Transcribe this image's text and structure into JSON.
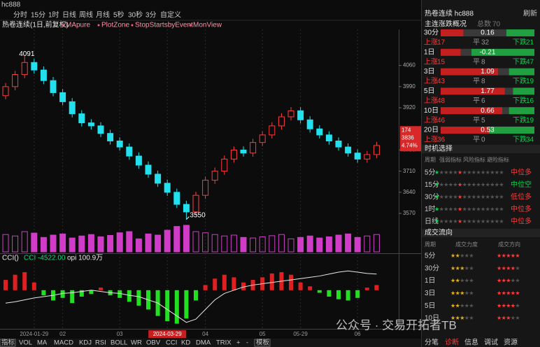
{
  "window_title": "hc888",
  "periods": [
    "分时",
    "15分",
    "1时",
    "日线",
    "周线",
    "月线",
    "5秒",
    "30秒",
    "3分",
    "自定义"
  ],
  "chart": {
    "title": "热卷连续(1日,前复权)",
    "indicators": [
      "MApure",
      "PlotZone",
      "StopStartsbyEvent",
      "MonView"
    ],
    "ylim": [
      3540,
      4175
    ],
    "yticks": [
      3570,
      3640,
      3710,
      3780,
      3920,
      3990,
      4060
    ],
    "open": [
      3960,
      3990,
      4030,
      4070,
      4045,
      4010,
      3970,
      3940,
      3900,
      3870,
      3860,
      3835,
      3810,
      3790,
      3760,
      3730,
      3700,
      3670,
      3640,
      3600,
      3575,
      3630,
      3680,
      3710,
      3750,
      3780,
      3770,
      3805,
      3830,
      3860,
      3890,
      3910,
      3880,
      3850,
      3830,
      3810,
      3790,
      3770,
      3750,
      3765
    ],
    "high": [
      4002,
      4042,
      4091,
      4082,
      4057,
      4022,
      3982,
      3952,
      3912,
      3882,
      3872,
      3847,
      3822,
      3802,
      3772,
      3742,
      3712,
      3682,
      3652,
      3612,
      3642,
      3692,
      3722,
      3762,
      3792,
      3792,
      3817,
      3842,
      3872,
      3902,
      3922,
      3922,
      3892,
      3862,
      3842,
      3822,
      3802,
      3782,
      3777,
      3807
    ],
    "low": [
      3948,
      3978,
      4018,
      4033,
      3998,
      3958,
      3928,
      3888,
      3858,
      3848,
      3823,
      3798,
      3778,
      3748,
      3718,
      3688,
      3658,
      3628,
      3588,
      3550,
      3563,
      3618,
      3668,
      3698,
      3738,
      3758,
      3758,
      3793,
      3818,
      3848,
      3878,
      3868,
      3838,
      3818,
      3798,
      3778,
      3758,
      3738,
      3738,
      3753
    ],
    "close": [
      3990,
      4030,
      4070,
      4045,
      4010,
      3970,
      3940,
      3900,
      3870,
      3860,
      3835,
      3810,
      3790,
      3760,
      3730,
      3700,
      3670,
      3640,
      3600,
      3575,
      3630,
      3680,
      3710,
      3750,
      3780,
      3770,
      3805,
      3830,
      3860,
      3890,
      3910,
      3880,
      3850,
      3830,
      3810,
      3790,
      3770,
      3750,
      3765,
      3795
    ],
    "max_label": 4091,
    "min_label": 3550,
    "last": {
      "change": 174,
      "price": 3836,
      "pct": "4.74%"
    },
    "volume": [
      60,
      55,
      70,
      65,
      50,
      58,
      62,
      48,
      55,
      60,
      52,
      57,
      66,
      70,
      45,
      62,
      58,
      75,
      88,
      92,
      70,
      66,
      60,
      55,
      58,
      50,
      48,
      52,
      56,
      60,
      45,
      50,
      55,
      48,
      52,
      58,
      62,
      50,
      55,
      60
    ],
    "cci_label": "CCI()",
    "cci_text": "CCI -4522.00",
    "opi_text": "opi 100.9万",
    "cci_ylim": [
      -300,
      200
    ],
    "cci": [
      80,
      120,
      140,
      60,
      -40,
      -80,
      -60,
      -100,
      -50,
      -30,
      20,
      -40,
      -60,
      -90,
      -120,
      -150,
      -200,
      -240,
      -260,
      -220,
      -80,
      40,
      90,
      120,
      100,
      60,
      80,
      100,
      130,
      140,
      120,
      60,
      30,
      -20,
      -50,
      -70,
      -80,
      -60,
      20,
      40
    ],
    "opi_ylim": [
      0,
      100
    ],
    "opi": [
      40,
      42,
      45,
      48,
      50,
      52,
      55,
      56,
      58,
      60,
      58,
      56,
      55,
      52,
      50,
      45,
      40,
      30,
      20,
      10,
      15,
      30,
      45,
      55,
      60,
      65,
      68,
      70,
      72,
      74,
      76,
      78,
      80,
      82,
      85,
      88,
      90,
      88,
      86,
      85
    ],
    "dates": [
      null,
      null,
      null,
      "2024-01-29",
      null,
      null,
      "02",
      null,
      null,
      null,
      null,
      null,
      "03",
      null,
      null,
      null,
      null,
      "2024-03-29",
      null,
      null,
      null,
      "04",
      null,
      null,
      null,
      null,
      null,
      "05",
      null,
      null,
      null,
      "05-29",
      null,
      null,
      null,
      null,
      null,
      "06",
      null,
      null
    ]
  },
  "tabs": [
    "指标",
    "VOL",
    "MA",
    "MACD",
    "KDJ",
    "RSI",
    "BOLL",
    "WR",
    "OBV",
    "CCI",
    "KD",
    "DMA",
    "TRIX",
    "+",
    "-",
    "模板"
  ],
  "sidebar": {
    "title": "热卷连续 hc888",
    "refresh": "刷新",
    "overview": {
      "title": "主连涨跌概况",
      "total_label": "总数",
      "total": 70,
      "labels": [
        "上涨",
        "平",
        "下跌"
      ],
      "rows": [
        {
          "period": "30分",
          "value": 0.16,
          "up": 17,
          "flat": 32,
          "down": 21
        },
        {
          "period": "1日",
          "value": -0.21,
          "up": 15,
          "flat": 8,
          "down": 47
        },
        {
          "period": "3日",
          "value": 1.09,
          "up": 43,
          "flat": 8,
          "down": 19
        },
        {
          "period": "5日",
          "value": 1.77,
          "up": 48,
          "flat": 6,
          "down": 16
        },
        {
          "period": "10日",
          "value": 0.66,
          "up": 46,
          "flat": 5,
          "down": 19
        },
        {
          "period": "20日",
          "value": 0.53,
          "up": 36,
          "flat": 0,
          "down": 34
        }
      ]
    },
    "timing": {
      "title": "时机选择",
      "headers": [
        "周期",
        "强弱指标",
        "风险指标",
        "避险指标"
      ],
      "rows": [
        {
          "period": "5分",
          "status": "中位多"
        },
        {
          "period": "15分",
          "status": "中位空"
        },
        {
          "period": "30分",
          "status": "低位多"
        },
        {
          "period": "1时",
          "status": "中位多"
        },
        {
          "period": "日线",
          "status": "中位多"
        }
      ]
    },
    "flow": {
      "title": "成交流向",
      "headers": [
        "周期",
        "成交力度",
        "成交方向"
      ],
      "rows": [
        "5分",
        "30分",
        "1日",
        "3日",
        "5日",
        "10日"
      ]
    },
    "tabs": [
      "分笔",
      "诊断",
      "信息",
      "调试",
      "资源"
    ]
  },
  "watermark": "公众号 · 交易开拓者TB"
}
